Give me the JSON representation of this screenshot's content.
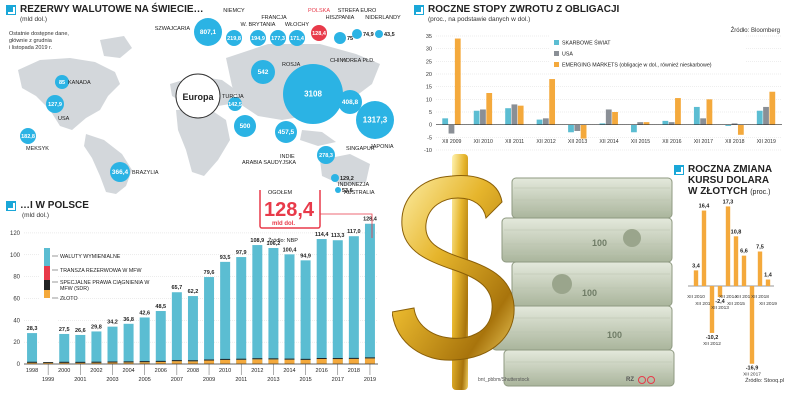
{
  "world": {
    "title": "REZERWY WALUTOWE NA ŚWIECIE…",
    "unit": "(mld dol.)",
    "note": [
      "Ostatnie dostępne dane,",
      "głównie z grudnia",
      "i listopada 2019 r."
    ],
    "europe_label": "Europa",
    "bubbles": [
      {
        "value": "807,1",
        "label": "SZWAJCARIA"
      },
      {
        "value": "219,8",
        "label": "NIEMCY"
      },
      {
        "value": "194,9",
        "label": "W. BRYTANIA"
      },
      {
        "value": "177,3",
        "label": "FRANCJA"
      },
      {
        "value": "171,4",
        "label": "WŁOCHY"
      },
      {
        "value": "128,4",
        "label": "POLSKA"
      },
      {
        "value": "75",
        "label": "HISZPANIA"
      },
      {
        "value": "74,9",
        "label": "STREFA EURO"
      },
      {
        "value": "43,5",
        "label": "NIDERLANDY"
      },
      {
        "value": "85",
        "label": "KANADA"
      },
      {
        "value": "127,9",
        "label": "USA"
      },
      {
        "value": "182,8",
        "label": "MEKSYK"
      },
      {
        "value": "366,4",
        "label": "BRAZYLIA"
      },
      {
        "value": "37,9",
        "label": "ARGENTYNA"
      },
      {
        "value": "55,1",
        "label": "RPA"
      },
      {
        "value": "542",
        "label": "ROSJA"
      },
      {
        "value": "142,5",
        "label": "TURCJA"
      },
      {
        "value": "500",
        "label": "ARABIA SAUDYJSKA"
      },
      {
        "value": "457,5",
        "label": "INDIE"
      },
      {
        "value": "3108",
        "label": "CHINY"
      },
      {
        "value": "408,8",
        "label": "KOREA PŁD."
      },
      {
        "value": "1317,3",
        "label": "JAPONIA"
      },
      {
        "value": "278,3",
        "label": "SINGAPUR"
      },
      {
        "value": "129,2",
        "label": "INDONEZJA"
      },
      {
        "value": "53,6",
        "label": "AUSTRALIA"
      }
    ]
  },
  "poland": {
    "title": "…I W POLSCE",
    "unit": "(mld dol.)",
    "callout_top": "OGÓŁEM",
    "callout_value": "128,4",
    "callout_unit": "mld dol.",
    "source": "Źródło: NBP",
    "legend": [
      "WALUTY WYMIENIALNE",
      "TRANSZA REZERWOWA W MFW",
      "SPECJALNE PRAWA CIĄGNIENIA W MFW (SDR)",
      "ZŁOTO"
    ],
    "legend_colors": [
      "#5bbdd2",
      "#e83a4a",
      "#222222",
      "#f4a93c"
    ],
    "chart_data": {
      "type": "bar",
      "categories": [
        "1998",
        "1999",
        "2000",
        "2001",
        "2002",
        "2003",
        "2004",
        "2005",
        "2006",
        "2007",
        "2008",
        "2009",
        "2010",
        "2011",
        "2012",
        "2013",
        "2014",
        "2015",
        "2016",
        "2017",
        "2018",
        "2019"
      ],
      "values": [
        28.3,
        27.3,
        27.5,
        26.6,
        29.8,
        34.2,
        36.8,
        42.6,
        48.5,
        65.7,
        62.2,
        79.6,
        93.5,
        97.9,
        108.9,
        106.2,
        100.4,
        94.9,
        114.4,
        113.3,
        117.0,
        128.4
      ],
      "labels": [
        "28,3",
        "27,3",
        "27,5",
        "26,6",
        "29,8",
        "34,2",
        "36,8",
        "42,6",
        "48,5",
        "65,7",
        "62,2",
        "79,6",
        "93,5",
        "97,9",
        "108,9",
        "106,2",
        "100,4",
        "94,9",
        "114,4",
        "113,3",
        "117,0",
        "128,4"
      ],
      "ylim": [
        0,
        130
      ],
      "yticks": [
        "0",
        "20",
        "40",
        "60",
        "80",
        "100",
        "120"
      ]
    }
  },
  "bonds": {
    "title": "ROCZNE STOPY ZWROTU Z OBLIGACJI",
    "unit": "(proc., na podstawie danych w dol.)",
    "source": "Źródło: Bloomberg",
    "colors": [
      "#5bbdd2",
      "#8a8f96",
      "#f4a93c"
    ],
    "chart_data": {
      "type": "bar",
      "categories": [
        "XII 2009",
        "XII 2010",
        "XII 2011",
        "XII 2012",
        "XII 2013",
        "XII 2014",
        "XII 2015",
        "XII 2016",
        "XII 2017",
        "XII 2018",
        "XII 2019"
      ],
      "series": [
        {
          "name": "SKARBOWE ŚWIAT",
          "values": [
            2.5,
            5.5,
            6.5,
            2,
            -3,
            0.5,
            -3,
            1.5,
            7,
            -0.5,
            5.5
          ]
        },
        {
          "name": "USA",
          "values": [
            -3.5,
            6,
            8,
            2.5,
            -2.5,
            6,
            1,
            1,
            2.5,
            0.5,
            7
          ]
        },
        {
          "name": "EMERGING MARKETS (obligacje w dol., również nieskarbowe)",
          "values": [
            34,
            12.5,
            7.5,
            18,
            -5.5,
            5,
            1,
            10.5,
            10,
            -4,
            13
          ]
        }
      ],
      "ylim": [
        -10,
        35
      ],
      "yticks": [
        "-10",
        "-5",
        "0",
        "5",
        "10",
        "15",
        "20",
        "25",
        "30",
        "35"
      ]
    }
  },
  "usd": {
    "title_lines": [
      "ROCZNA ZMIANA",
      "KURSU DOLARA",
      "W ZŁOTYCH"
    ],
    "unit": "(proc.)",
    "source": "Źródło: Stooq.pl",
    "color": "#f4a93c",
    "chart_data": {
      "type": "bar",
      "categories": [
        "XII 2010",
        "XII 2011",
        "XII 2012",
        "XII 2013",
        "XII 2014",
        "XII 2015",
        "XII 2016",
        "XII 2017",
        "XII 2018",
        "XII 2019"
      ],
      "values": [
        3.4,
        16.4,
        -10.2,
        -2.4,
        17.3,
        10.8,
        6.6,
        -16.9,
        7.5,
        1.4
      ],
      "labels": [
        "3,4",
        "16,4",
        "-10,2",
        "-2,4",
        "17,3",
        "10,8",
        "6,6",
        "-16,9",
        "7,5",
        "1,4"
      ],
      "ylim": [
        -17,
        18
      ]
    }
  },
  "photo_credit": "bnt_pbbm/Shutterstock",
  "brand": "RZ"
}
